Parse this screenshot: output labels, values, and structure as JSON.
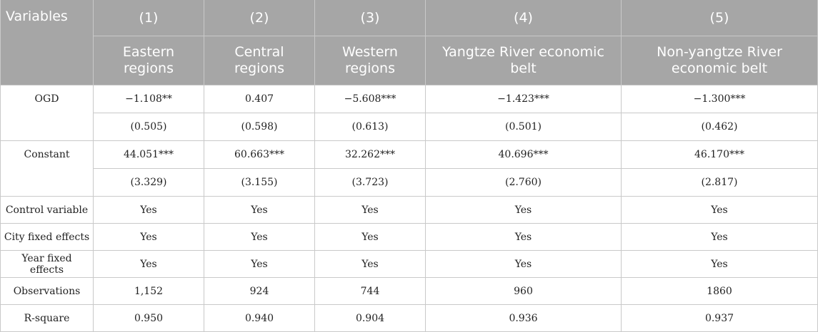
{
  "header": {
    "variables_label": "Variables",
    "col_numbers": [
      "(1)",
      "(2)",
      "(3)",
      "(4)",
      "(5)"
    ],
    "col_names": [
      "Eastern regions",
      "Central regions",
      "Western regions",
      "Yangtze River economic belt",
      "Non-yangtze River economic belt"
    ]
  },
  "rows": {
    "ogd": {
      "label": "OGD",
      "coef": [
        "−1.108**",
        "0.407",
        "−5.608***",
        "−1.423***",
        "−1.300***"
      ],
      "se": [
        "(0.505)",
        "(0.598)",
        "(0.613)",
        "(0.501)",
        "(0.462)"
      ]
    },
    "constant": {
      "label": "Constant",
      "coef": [
        "44.051***",
        "60.663***",
        "32.262***",
        "40.696***",
        "46.170***"
      ],
      "se": [
        "(3.329)",
        "(3.155)",
        "(3.723)",
        "(2.760)",
        "(2.817)"
      ]
    },
    "control": {
      "label": "Control variable",
      "values": [
        "Yes",
        "Yes",
        "Yes",
        "Yes",
        "Yes"
      ]
    },
    "city_fe": {
      "label": "City fixed effects",
      "values": [
        "Yes",
        "Yes",
        "Yes",
        "Yes",
        "Yes"
      ]
    },
    "year_fe": {
      "label": "Year fixed effects",
      "values": [
        "Yes",
        "Yes",
        "Yes",
        "Yes",
        "Yes"
      ]
    },
    "observations": {
      "label": "Observations",
      "values": [
        "1,152",
        "924",
        "744",
        "960",
        "1860"
      ]
    },
    "r_square": {
      "label": "R-square",
      "values": [
        "0.950",
        "0.940",
        "0.904",
        "0.936",
        "0.937"
      ]
    }
  }
}
